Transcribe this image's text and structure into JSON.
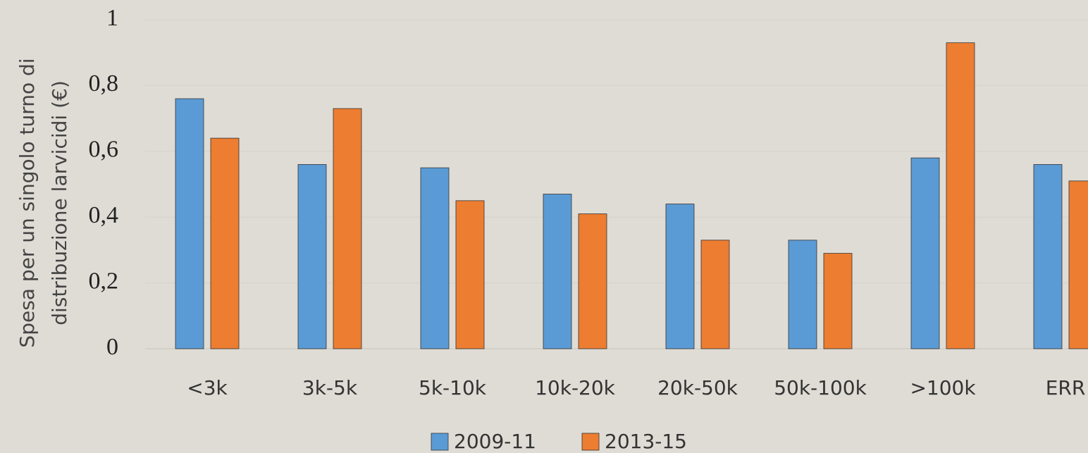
{
  "chart_data": {
    "type": "bar",
    "ylabel": [
      "Spesa per un singolo turno di",
      "distribuzione larvicidi (€)"
    ],
    "categories": [
      "<3k",
      "3k-5k",
      "5k-10k",
      "10k-20k",
      "20k-50k",
      "50k-100k",
      ">100k",
      "ERR"
    ],
    "series": [
      {
        "name": "2009-11",
        "color": "#5b9bd5",
        "values": [
          0.76,
          0.56,
          0.55,
          0.47,
          0.44,
          0.33,
          0.58,
          0.56
        ]
      },
      {
        "name": "2013-15",
        "color": "#ed7d31",
        "values": [
          0.64,
          0.73,
          0.45,
          0.41,
          0.33,
          0.29,
          0.93,
          0.51
        ]
      }
    ],
    "ylim": [
      0,
      1
    ],
    "yticks": [
      0,
      {
        "value": 0.2,
        "label": "0,2"
      },
      {
        "value": 0.4,
        "label": "0,4"
      },
      {
        "value": 0.6,
        "label": "0,6"
      },
      {
        "value": 0.8,
        "label": "0,8"
      },
      1
    ],
    "grid": true,
    "legend": "bottom"
  }
}
